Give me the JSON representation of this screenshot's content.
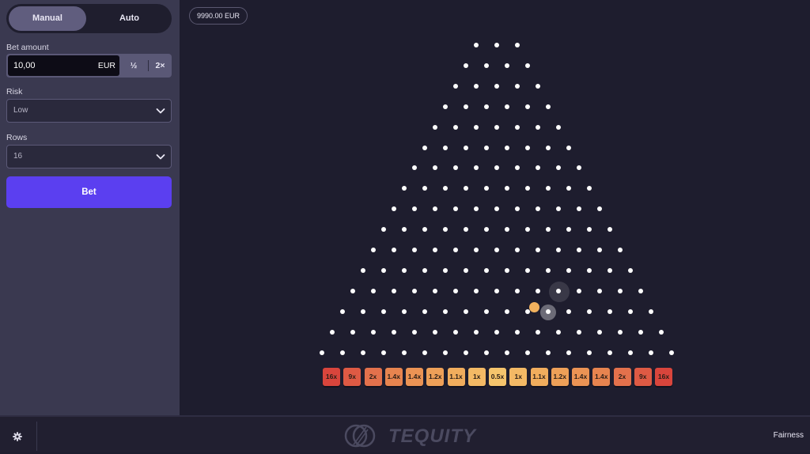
{
  "sidebar": {
    "mode_tabs": [
      {
        "label": "Manual",
        "active": true
      },
      {
        "label": "Auto",
        "active": false
      }
    ],
    "bet_amount": {
      "label": "Bet amount",
      "value": "10,00",
      "currency": "EUR",
      "half_label": "½",
      "double_label": "2×"
    },
    "risk": {
      "label": "Risk",
      "value": "Low"
    },
    "rows": {
      "label": "Rows",
      "value": "16"
    },
    "bet_button_label": "Bet"
  },
  "header": {
    "balance": "9990.00 EUR"
  },
  "game": {
    "peg_rows": 16,
    "buckets": [
      {
        "label": "16x",
        "color": "#d9453c"
      },
      {
        "label": "9x",
        "color": "#de5a44"
      },
      {
        "label": "2x",
        "color": "#e3714c"
      },
      {
        "label": "1.4x",
        "color": "#e7844f"
      },
      {
        "label": "1.4x",
        "color": "#eb9354"
      },
      {
        "label": "1.2x",
        "color": "#eea058"
      },
      {
        "label": "1.1x",
        "color": "#f1ad5d"
      },
      {
        "label": "1x",
        "color": "#f3b965"
      },
      {
        "label": "0.5x",
        "color": "#f5c46c"
      },
      {
        "label": "1x",
        "color": "#f3b965"
      },
      {
        "label": "1.1x",
        "color": "#f1ad5d"
      },
      {
        "label": "1.2x",
        "color": "#eea058"
      },
      {
        "label": "1.4x",
        "color": "#eb9354"
      },
      {
        "label": "1.4x",
        "color": "#e7844f"
      },
      {
        "label": "2x",
        "color": "#e3714c"
      },
      {
        "label": "9x",
        "color": "#de5a44"
      },
      {
        "label": "16x",
        "color": "#d9453c"
      }
    ],
    "ball_color": "#f2b25e"
  },
  "footer": {
    "logo_text": "TEQUITY",
    "fairness_label": "Fairness",
    "settings_icon": "gear-icon"
  }
}
